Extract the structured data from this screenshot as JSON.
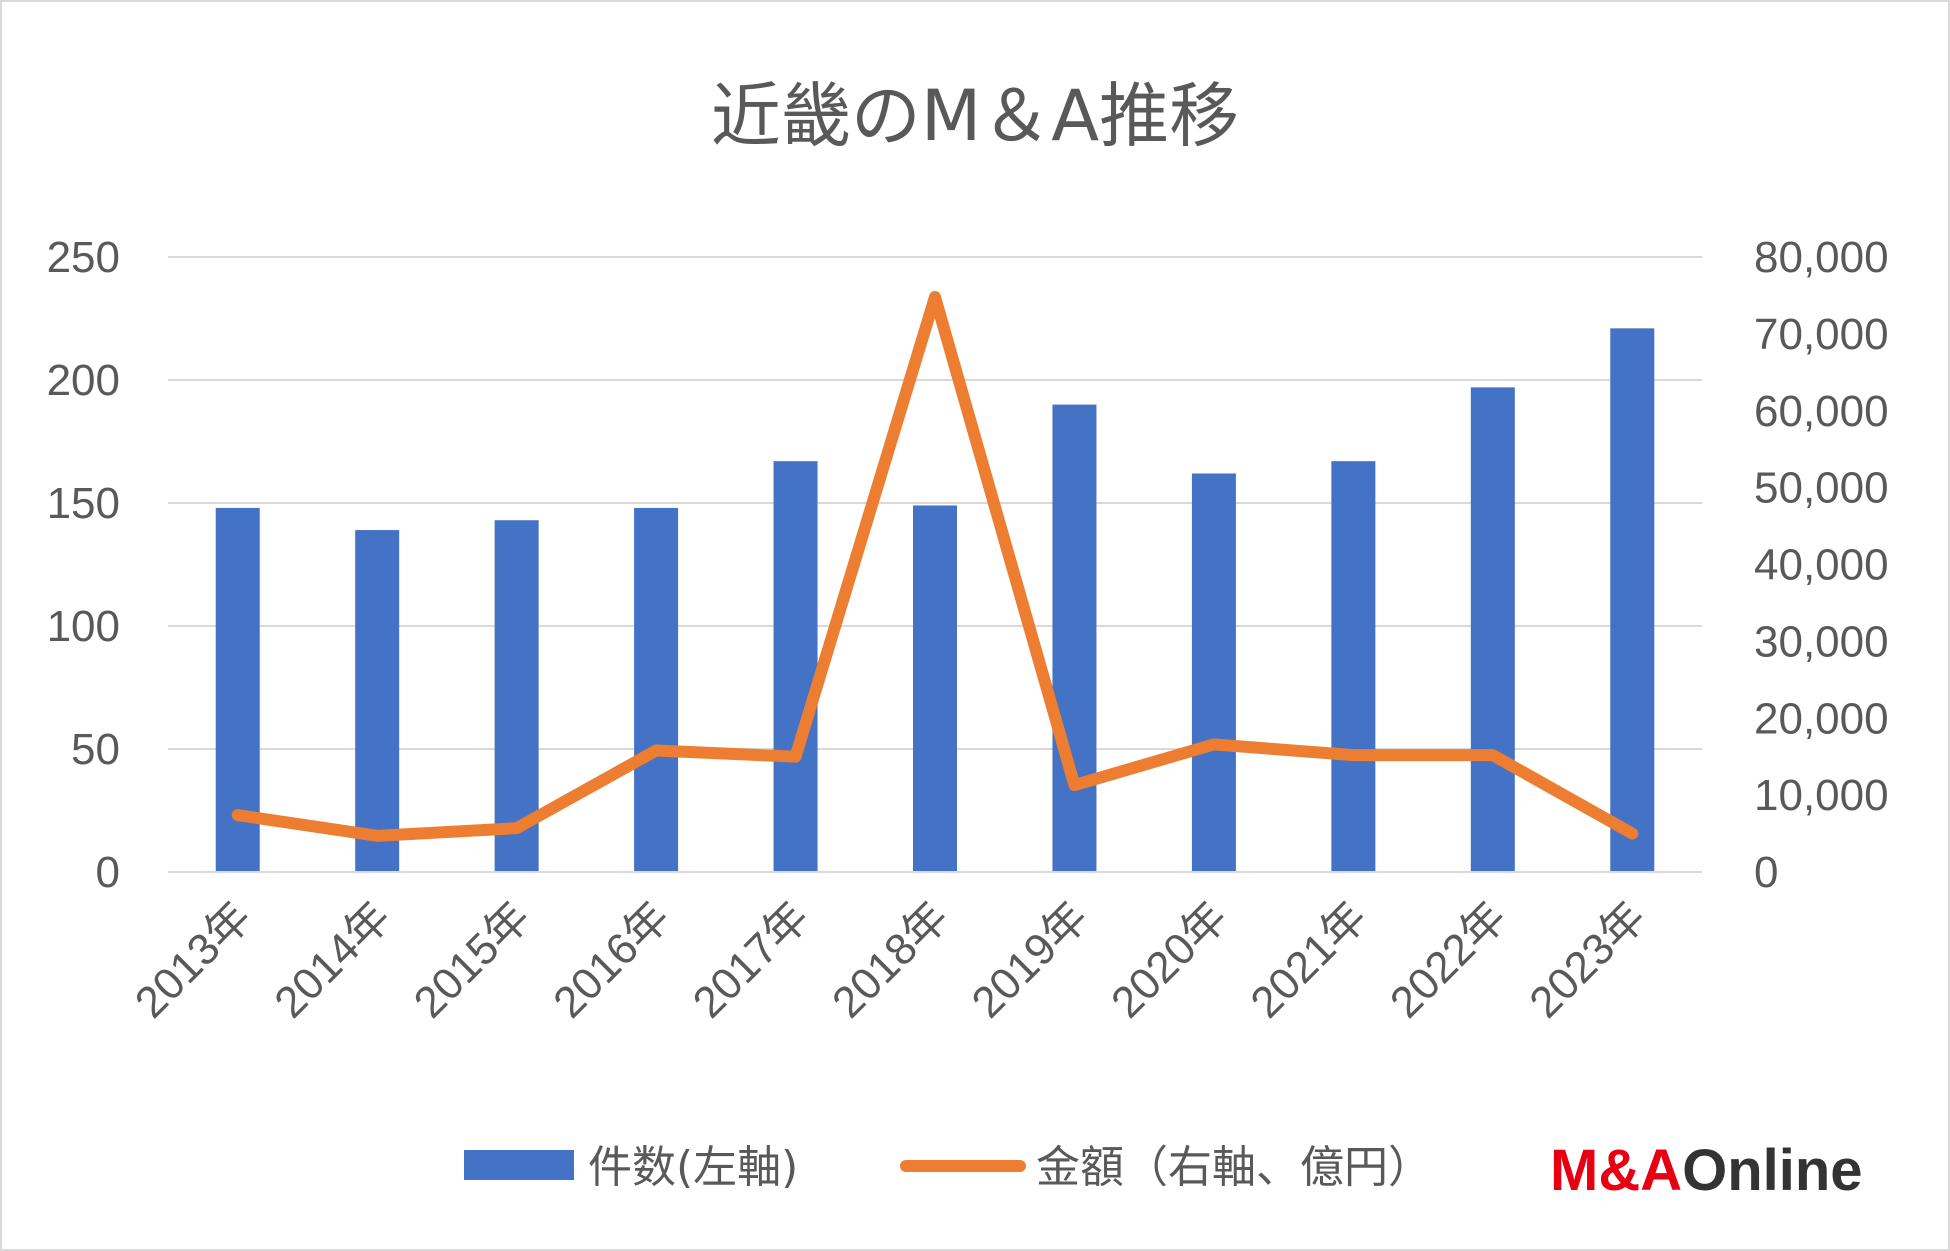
{
  "colors": {
    "bar": "#4472c4",
    "line": "#ed7d31",
    "grid": "#d9d9d9",
    "text": "#595959",
    "logo_red": "#e60012",
    "logo_dark": "#333333"
  },
  "logo": {
    "prefix": "M&A",
    "suffix": "Online"
  },
  "chart_data": {
    "type": "bar",
    "title": "近畿のM＆A推移",
    "categories": [
      "2013年",
      "2014年",
      "2015年",
      "2016年",
      "2017年",
      "2018年",
      "2019年",
      "2020年",
      "2021年",
      "2022年",
      "2023年"
    ],
    "series": [
      {
        "name": "件数(左軸)",
        "type": "bar",
        "axis": "left",
        "values": [
          148,
          139,
          143,
          148,
          167,
          149,
          190,
          162,
          167,
          197,
          221
        ]
      },
      {
        "name": "金額（右軸、億円）",
        "type": "line",
        "axis": "right",
        "values": [
          7400,
          4700,
          5700,
          15800,
          15000,
          74800,
          11300,
          16600,
          15200,
          15200,
          5000
        ]
      }
    ],
    "y_left": {
      "min": 0,
      "max": 250,
      "ticks": [
        "0",
        "50",
        "100",
        "150",
        "200",
        "250"
      ]
    },
    "y_right": {
      "min": 0,
      "max": 80000,
      "ticks": [
        "0",
        "10,000",
        "20,000",
        "30,000",
        "40,000",
        "50,000",
        "60,000",
        "70,000",
        "80,000"
      ]
    },
    "grid": true,
    "legend": "bottom"
  }
}
